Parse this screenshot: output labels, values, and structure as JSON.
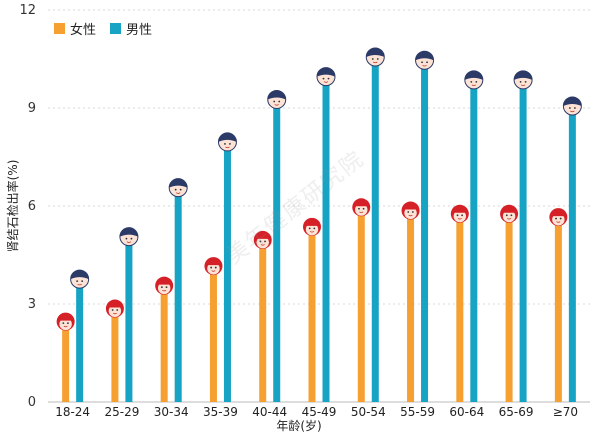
{
  "chart_data": {
    "type": "bar",
    "ylabel": "肾结石检出率(%)",
    "xlabel": "年龄(岁)",
    "ylim": [
      0,
      12
    ],
    "yticks": [
      0,
      3,
      6,
      9,
      12
    ],
    "grid": true,
    "legend_position": "top-left",
    "categories": [
      "18-24",
      "25-29",
      "30-34",
      "35-39",
      "40-44",
      "45-49",
      "50-54",
      "55-59",
      "60-64",
      "65-69",
      "≥70"
    ],
    "series": [
      {
        "name": "女性",
        "color": "#F5A031",
        "values": [
          2.4,
          2.8,
          3.5,
          4.1,
          4.9,
          5.3,
          5.9,
          5.8,
          5.7,
          5.7,
          5.6
        ]
      },
      {
        "name": "男性",
        "color": "#17A3C4",
        "values": [
          3.7,
          5.0,
          6.5,
          7.9,
          9.2,
          9.9,
          10.5,
          10.4,
          9.8,
          9.8,
          9.0
        ]
      }
    ]
  },
  "watermark": "美年健康研究院",
  "icons": {
    "female": "girl-face-icon",
    "male": "boy-face-icon"
  }
}
